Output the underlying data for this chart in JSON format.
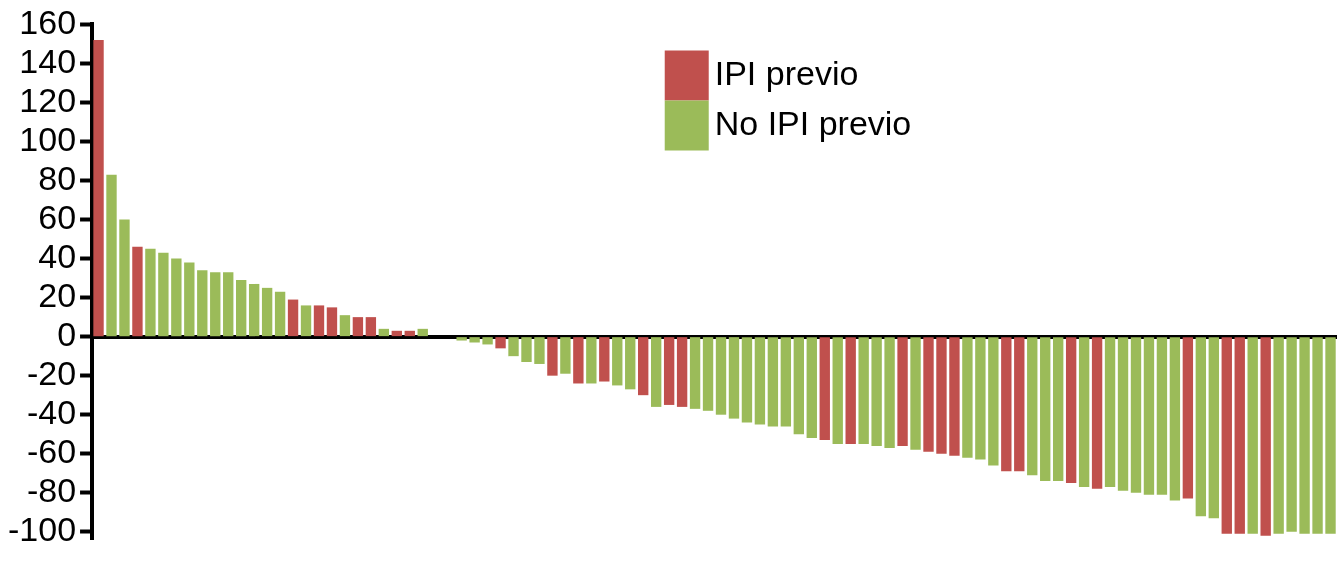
{
  "chart_data": {
    "type": "bar",
    "categories": [
      null,
      null,
      null,
      null,
      null,
      null,
      null,
      null,
      null,
      null,
      null,
      null,
      null,
      null,
      null,
      null,
      null,
      null,
      null,
      null,
      null,
      null,
      null,
      null,
      null,
      null,
      null,
      null,
      null,
      null,
      null,
      null,
      null,
      null,
      null,
      null,
      null,
      null,
      null,
      null,
      null,
      null,
      null,
      null,
      null,
      null,
      null,
      null,
      null,
      null,
      null,
      null,
      null,
      null,
      null,
      null,
      null,
      null,
      null,
      null,
      null,
      null,
      null,
      null,
      null,
      null,
      null,
      null,
      null,
      null,
      null,
      null,
      null,
      null,
      null,
      null,
      null,
      null,
      null,
      null,
      null,
      null,
      null,
      null,
      null,
      null,
      null,
      null,
      null,
      null,
      null,
      null,
      null,
      null,
      null,
      null
    ],
    "series": [
      {
        "name": "IPI previo",
        "color": "#c0504d",
        "values": [
          152,
          null,
          null,
          46,
          null,
          null,
          null,
          null,
          null,
          null,
          null,
          null,
          null,
          null,
          null,
          19,
          null,
          16,
          15,
          null,
          10,
          10,
          null,
          3,
          3,
          null,
          null,
          null,
          null,
          null,
          null,
          -6,
          null,
          null,
          null,
          -20,
          null,
          -24,
          null,
          -23,
          null,
          null,
          -30,
          null,
          -35,
          -36,
          null,
          null,
          null,
          null,
          null,
          null,
          null,
          null,
          null,
          null,
          -53,
          null,
          -55,
          null,
          null,
          null,
          -56,
          null,
          -59,
          -60,
          -61,
          null,
          null,
          null,
          -69,
          -69,
          null,
          null,
          null,
          -75,
          null,
          -78,
          null,
          null,
          null,
          null,
          null,
          null,
          -83,
          null,
          null,
          -101,
          -101,
          null,
          -102,
          null,
          null,
          null,
          null,
          null
        ]
      },
      {
        "name": "No IPI previo",
        "color": "#9bbb59",
        "values": [
          null,
          83,
          60,
          null,
          45,
          43,
          40,
          38,
          34,
          33,
          33,
          29,
          27,
          25,
          23,
          null,
          16,
          null,
          null,
          11,
          null,
          null,
          4,
          null,
          null,
          4,
          null,
          null,
          -2,
          -3,
          -4,
          null,
          -10,
          -13,
          -14,
          null,
          -19,
          null,
          -24,
          null,
          -25,
          -27,
          null,
          -36,
          null,
          null,
          -37,
          -38,
          -40,
          -42,
          -44,
          -45,
          -46,
          -46,
          -50,
          -52,
          null,
          -55,
          null,
          -55,
          -56,
          -57,
          null,
          -58,
          null,
          null,
          null,
          -62,
          -63,
          -66,
          null,
          null,
          -71,
          -74,
          -74,
          null,
          -77,
          null,
          -77,
          -79,
          -80,
          -81,
          -81,
          -84,
          null,
          -92,
          -93,
          null,
          null,
          -101,
          null,
          -101,
          -100,
          -101,
          -101,
          -101
        ]
      }
    ],
    "ylim": [
      -104,
      160
    ],
    "yticks": [
      -100,
      -80,
      -60,
      -40,
      -20,
      0,
      20,
      40,
      60,
      80,
      100,
      120,
      140,
      160
    ],
    "legend": "top right"
  }
}
